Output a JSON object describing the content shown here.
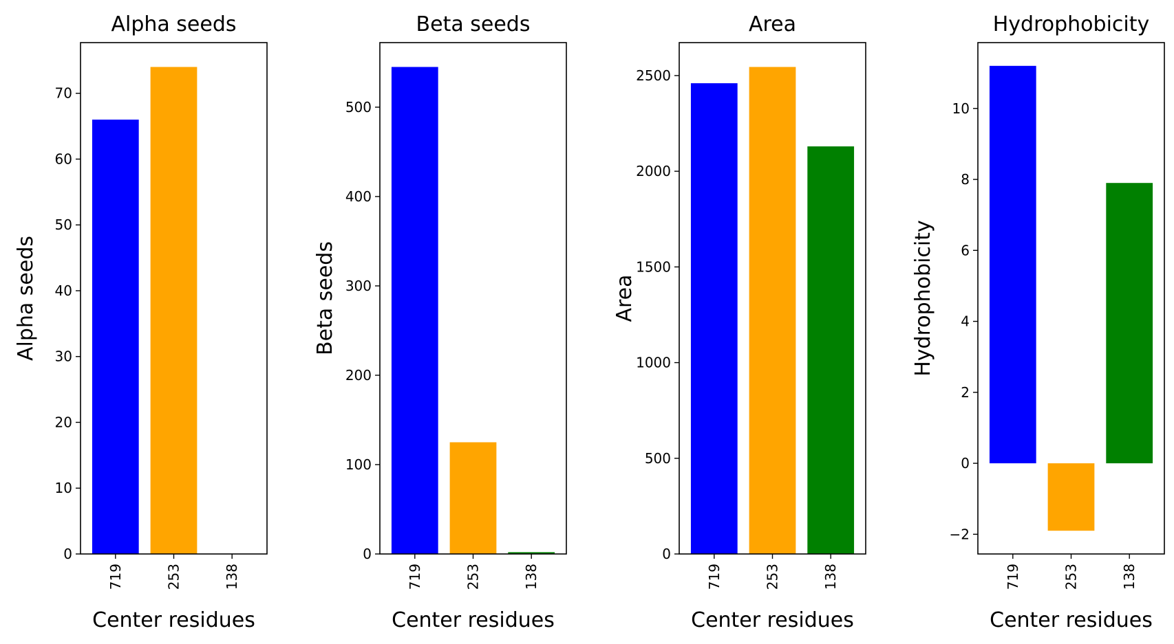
{
  "chart_data": [
    {
      "type": "bar",
      "title": "Alpha seeds",
      "xlabel": "Center residues",
      "ylabel": "Alpha seeds",
      "categories": [
        "719",
        "253",
        "138"
      ],
      "values": [
        66,
        74,
        0
      ],
      "colors": [
        "#0000ff",
        "#ffa500",
        "#008000"
      ],
      "ylim": [
        0,
        77.7
      ],
      "yticks": [
        0,
        10,
        20,
        30,
        40,
        50,
        60,
        70
      ],
      "ytick_labels": [
        "0",
        "10",
        "20",
        "30",
        "40",
        "50",
        "60",
        "70"
      ],
      "grid": false
    },
    {
      "type": "bar",
      "title": "Beta seeds",
      "xlabel": "Center residues",
      "ylabel": "Beta seeds",
      "categories": [
        "719",
        "253",
        "138"
      ],
      "values": [
        545,
        125,
        2
      ],
      "colors": [
        "#0000ff",
        "#ffa500",
        "#008000"
      ],
      "ylim": [
        0,
        572.25
      ],
      "yticks": [
        0,
        100,
        200,
        300,
        400,
        500
      ],
      "ytick_labels": [
        "0",
        "100",
        "200",
        "300",
        "400",
        "500"
      ],
      "grid": false
    },
    {
      "type": "bar",
      "title": "Area",
      "xlabel": "Center residues",
      "ylabel": "Area",
      "categories": [
        "719",
        "253",
        "138"
      ],
      "values": [
        2460,
        2545,
        2130
      ],
      "colors": [
        "#0000ff",
        "#ffa500",
        "#008000"
      ],
      "ylim": [
        0,
        2672.25
      ],
      "yticks": [
        0,
        500,
        1000,
        1500,
        2000,
        2500
      ],
      "ytick_labels": [
        "0",
        "500",
        "1000",
        "1500",
        "2000",
        "2500"
      ],
      "grid": false
    },
    {
      "type": "bar",
      "title": "Hydrophobicity",
      "xlabel": "Center residues",
      "ylabel": "Hydrophobicity",
      "categories": [
        "719",
        "253",
        "138"
      ],
      "values": [
        11.2,
        -1.9,
        7.9
      ],
      "colors": [
        "#0000ff",
        "#ffa500",
        "#008000"
      ],
      "ylim": [
        -2.555,
        11.855
      ],
      "yticks": [
        -2,
        0,
        2,
        4,
        6,
        8,
        10
      ],
      "ytick_labels": [
        "−2",
        "0",
        "2",
        "4",
        "6",
        "8",
        "10"
      ],
      "grid": false
    }
  ]
}
